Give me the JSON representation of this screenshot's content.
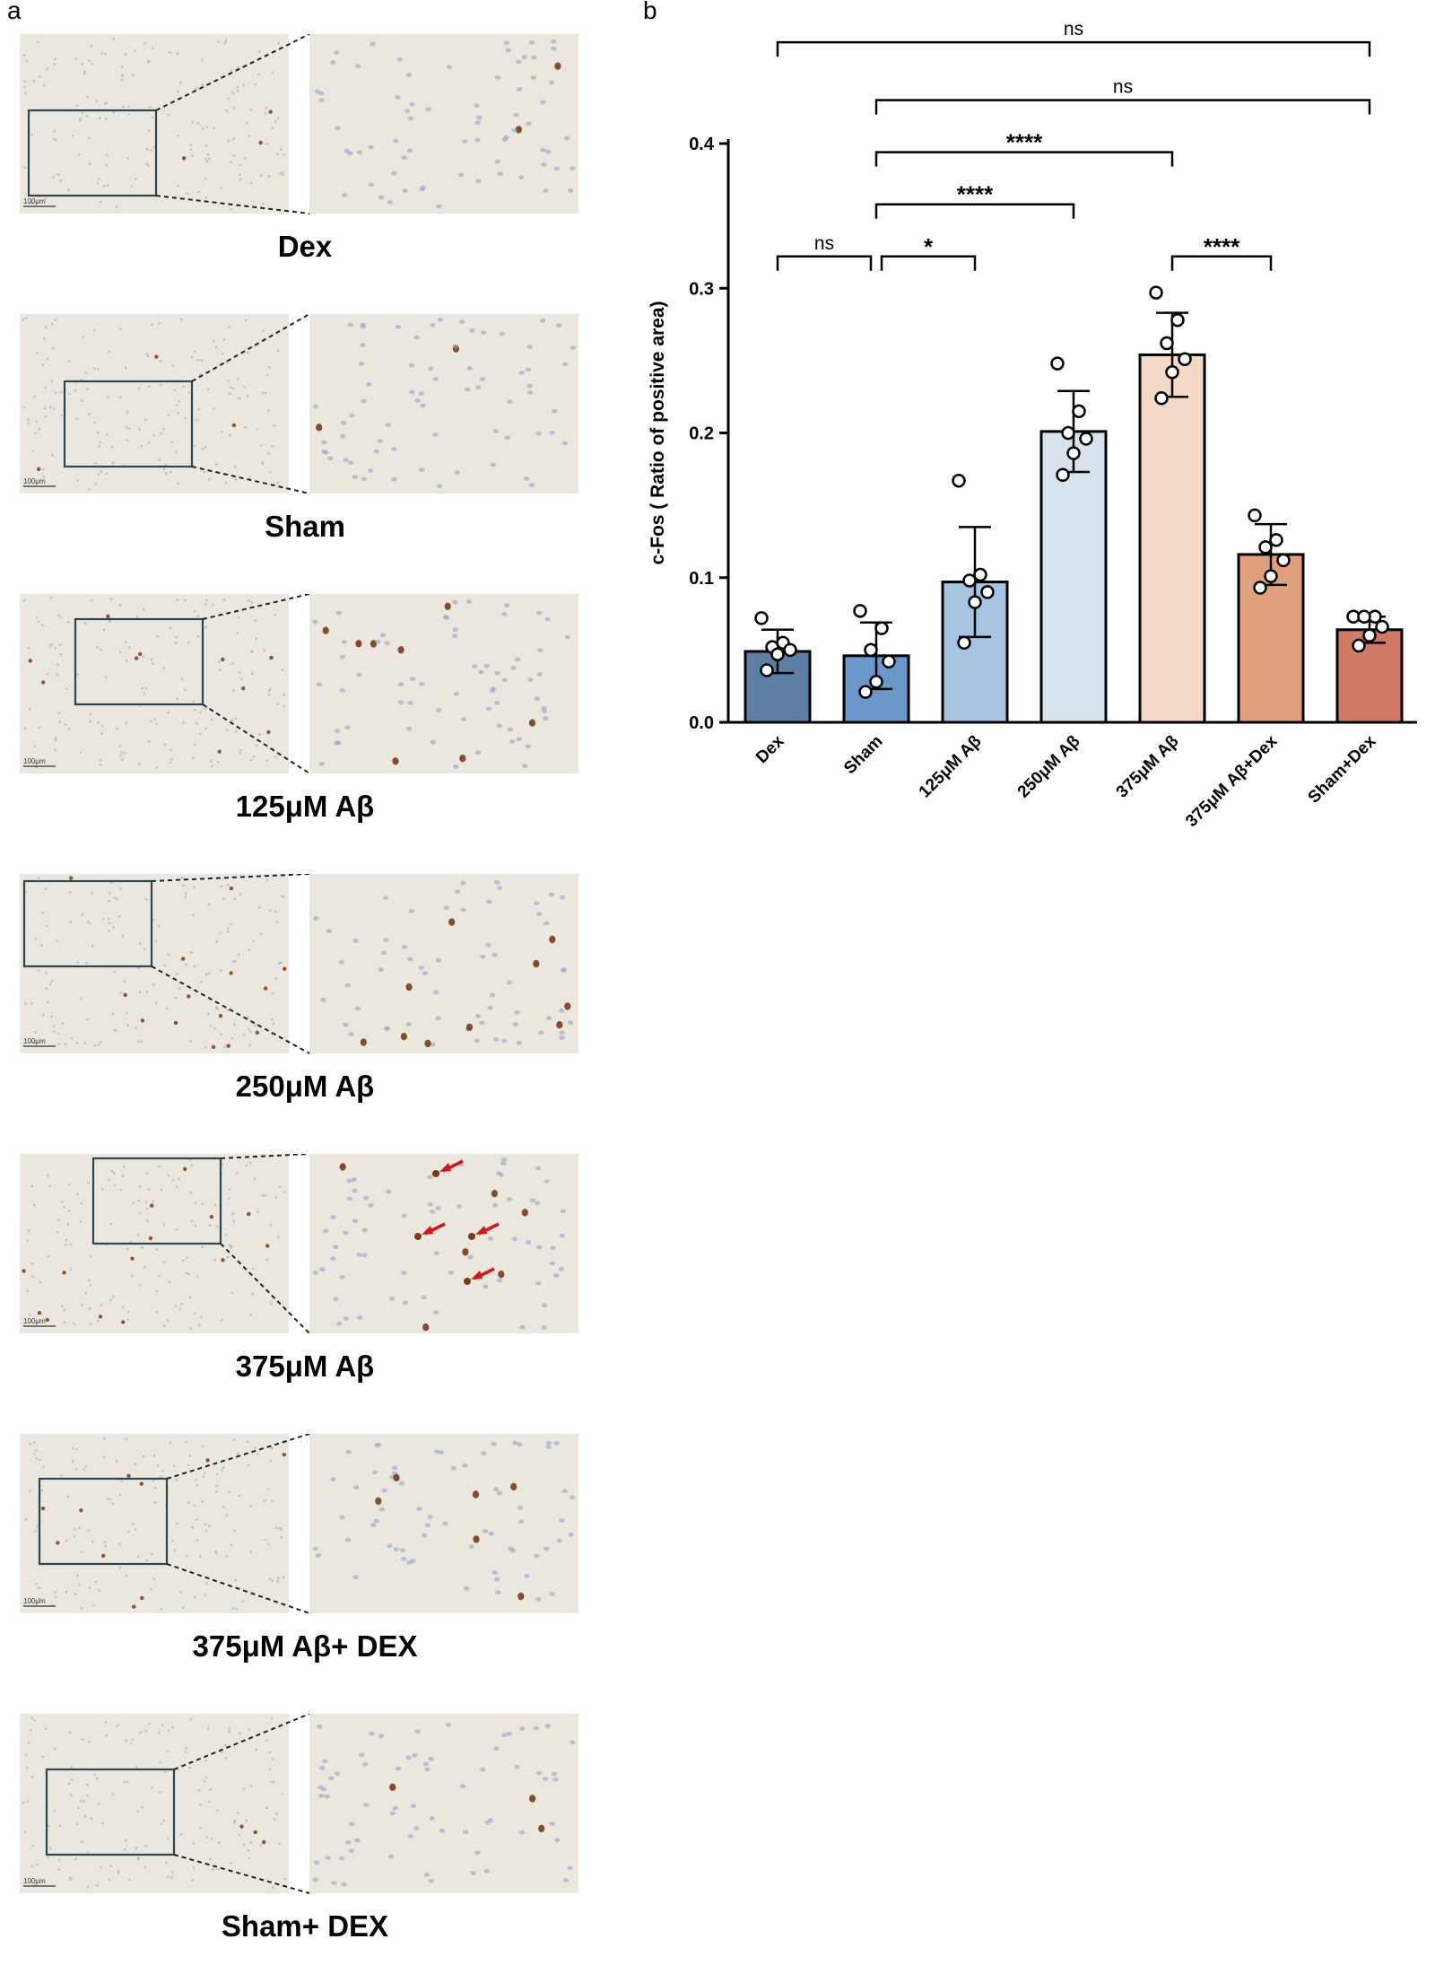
{
  "figure": {
    "panel_a_letter": "a",
    "panel_b_letter": "b"
  },
  "panel_a": {
    "scale_bar_text": "100μm",
    "groups": [
      {
        "label": "Dex",
        "brown_density": 0.2,
        "arrows": 0
      },
      {
        "label": "Sham",
        "brown_density": 0.15,
        "arrows": 0
      },
      {
        "label": "125μM Aβ",
        "brown_density": 0.55,
        "arrows": 0
      },
      {
        "label": "250μM Aβ",
        "brown_density": 0.7,
        "arrows": 0
      },
      {
        "label": "375μM Aβ",
        "brown_density": 0.6,
        "arrows": 4
      },
      {
        "label": "375μM Aβ+ DEX",
        "brown_density": 0.45,
        "arrows": 0
      },
      {
        "label": "Sham+ DEX",
        "brown_density": 0.3,
        "arrows": 0
      }
    ],
    "colors": {
      "tissue_bg": "#ebe7de",
      "nuclei_blue": "#9aa3c8",
      "nuclei_brown": "#7a3a1a",
      "box": "#2f4550",
      "arrow": "#d01818"
    }
  },
  "chart_data": {
    "type": "bar",
    "title": "",
    "xlabel": "",
    "ylabel": "c-Fos ( Ratio of positive area)",
    "ylim": [
      0,
      0.4
    ],
    "yticks": [
      "0.0",
      "0.1",
      "0.2",
      "0.3",
      "0.4"
    ],
    "categories": [
      "Dex",
      "Sham",
      "125μM Aβ",
      "250μM Aβ",
      "375μM Aβ",
      "375μM Aβ+Dex",
      "Sham+Dex"
    ],
    "values": [
      0.049,
      0.046,
      0.097,
      0.201,
      0.254,
      0.116,
      0.064
    ],
    "errors": [
      0.015,
      0.023,
      0.038,
      0.028,
      0.029,
      0.021,
      0.009
    ],
    "points": [
      [
        0.072,
        0.055,
        0.052,
        0.05,
        0.047,
        0.036
      ],
      [
        0.077,
        0.065,
        0.05,
        0.042,
        0.028,
        0.021
      ],
      [
        0.167,
        0.102,
        0.098,
        0.09,
        0.083,
        0.055
      ],
      [
        0.248,
        0.215,
        0.2,
        0.196,
        0.186,
        0.171
      ],
      [
        0.297,
        0.278,
        0.262,
        0.251,
        0.242,
        0.224
      ],
      [
        0.143,
        0.126,
        0.121,
        0.112,
        0.101,
        0.093
      ],
      [
        0.073,
        0.073,
        0.073,
        0.066,
        0.06,
        0.053
      ]
    ],
    "bar_colors": [
      "#5e7fa3",
      "#6b98c8",
      "#a7c4e3",
      "#d9e3ee",
      "#f3d8c5",
      "#e0a07e",
      "#cf7a66"
    ],
    "significance": [
      {
        "from": 0,
        "to": 6,
        "label": "ns",
        "level": 0.47
      },
      {
        "from": 1,
        "to": 6,
        "label": "ns",
        "level": 0.43
      },
      {
        "from": 1,
        "to": 4,
        "label": "****",
        "level": 0.394
      },
      {
        "from": 1,
        "to": 3,
        "label": "****",
        "level": 0.358
      },
      {
        "from": 0,
        "to": 1,
        "label": "ns",
        "level": 0.322
      },
      {
        "from": 1,
        "to": 2,
        "label": "*",
        "level": 0.322
      },
      {
        "from": 4,
        "to": 5,
        "label": "****",
        "level": 0.322
      }
    ]
  }
}
